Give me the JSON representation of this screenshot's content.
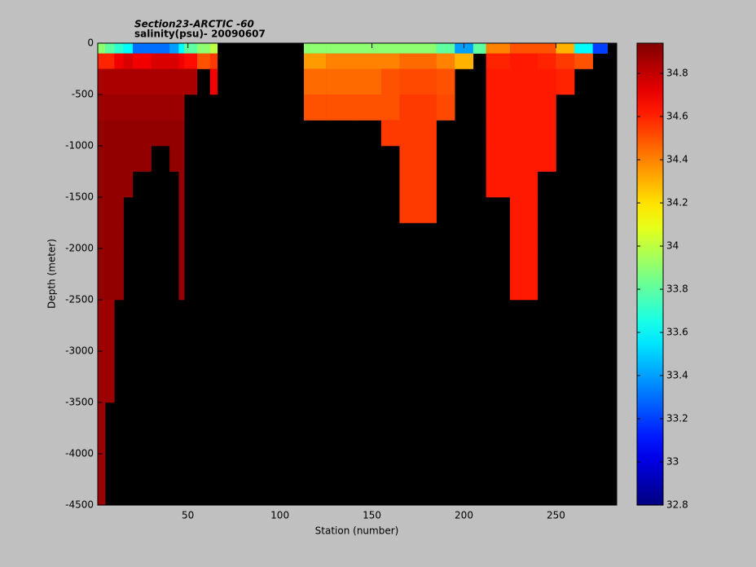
{
  "chart_data": {
    "type": "heatmap",
    "title": "Section23-ARCTIC  -60",
    "subtitle": "salinity(psu)- 20090607",
    "x_label": "Station (number)",
    "y_label": "Depth (meter)",
    "xlim": [
      1,
      283
    ],
    "xticks": [
      50,
      100,
      150,
      200,
      250
    ],
    "ylim": [
      -4500,
      0
    ],
    "yticks": [
      0,
      -500,
      -1000,
      -1500,
      -2000,
      -2500,
      -3000,
      -3500,
      -4000,
      -4500
    ],
    "colormap": "jet",
    "missing_color": "#000000",
    "clim": [
      32.8,
      34.94
    ],
    "cticks": [
      32.8,
      33,
      33.2,
      33.4,
      33.6,
      33.8,
      34,
      34.2,
      34.4,
      34.6,
      34.8
    ],
    "x_edges": [
      1,
      5,
      10,
      15,
      20,
      30,
      40,
      45,
      48,
      55,
      62,
      66,
      113,
      125,
      140,
      155,
      165,
      185,
      195,
      205,
      212,
      225,
      240,
      250,
      260,
      270,
      278,
      283
    ],
    "y_edges": [
      0,
      -100,
      -250,
      -500,
      -750,
      -1000,
      -1250,
      -1500,
      -1750,
      -2000,
      -2500,
      -3000,
      -3500,
      -4000,
      -4500
    ],
    "values": [
      [
        33.9,
        34.6,
        34.85,
        34.88,
        34.9,
        34.9,
        34.9,
        34.9,
        34.9,
        34.9,
        34.88,
        34.88,
        34.88,
        34.88
      ],
      [
        33.8,
        34.6,
        34.85,
        34.88,
        34.9,
        34.9,
        34.9,
        34.9,
        34.9,
        34.9,
        34.88,
        34.88,
        null,
        null
      ],
      [
        33.7,
        34.7,
        34.85,
        34.88,
        34.9,
        34.9,
        34.9,
        34.9,
        34.9,
        34.9,
        null,
        null,
        null,
        null
      ],
      [
        33.6,
        34.75,
        34.85,
        34.88,
        34.9,
        34.9,
        34.9,
        null,
        null,
        null,
        null,
        null,
        null,
        null
      ],
      [
        33.3,
        34.7,
        34.85,
        34.88,
        34.9,
        34.9,
        null,
        null,
        null,
        null,
        null,
        null,
        null,
        null
      ],
      [
        33.3,
        34.75,
        34.85,
        34.88,
        34.9,
        null,
        null,
        null,
        null,
        null,
        null,
        null,
        null,
        null
      ],
      [
        33.4,
        34.75,
        34.85,
        34.88,
        34.9,
        34.9,
        null,
        null,
        null,
        null,
        null,
        null,
        null,
        null
      ],
      [
        33.6,
        34.7,
        34.85,
        34.88,
        34.9,
        34.9,
        34.9,
        34.9,
        34.9,
        34.9,
        null,
        null,
        null,
        null
      ],
      [
        33.8,
        34.65,
        34.85,
        null,
        null,
        null,
        null,
        null,
        null,
        null,
        null,
        null,
        null,
        null
      ],
      [
        33.9,
        34.5,
        null,
        null,
        null,
        null,
        null,
        null,
        null,
        null,
        null,
        null,
        null,
        null
      ],
      [
        34.0,
        34.55,
        34.7,
        null,
        null,
        null,
        null,
        null,
        null,
        null,
        null,
        null,
        null,
        null
      ],
      [
        null,
        null,
        null,
        null,
        null,
        null,
        null,
        null,
        null,
        null,
        null,
        null,
        null,
        null
      ],
      [
        33.9,
        34.35,
        34.45,
        34.5,
        null,
        null,
        null,
        null,
        null,
        null,
        null,
        null,
        null,
        null
      ],
      [
        33.9,
        34.4,
        34.45,
        34.5,
        null,
        null,
        null,
        null,
        null,
        null,
        null,
        null,
        null,
        null
      ],
      [
        33.9,
        34.4,
        34.45,
        34.5,
        null,
        null,
        null,
        null,
        null,
        null,
        null,
        null,
        null,
        null
      ],
      [
        33.9,
        34.4,
        34.5,
        34.5,
        34.55,
        null,
        null,
        null,
        null,
        null,
        null,
        null,
        null,
        null
      ],
      [
        33.9,
        34.45,
        34.52,
        34.55,
        34.55,
        34.55,
        34.55,
        34.55,
        null,
        null,
        null,
        null,
        null,
        null
      ],
      [
        33.8,
        34.4,
        34.5,
        34.52,
        null,
        null,
        null,
        null,
        null,
        null,
        null,
        null,
        null,
        null
      ],
      [
        33.4,
        34.3,
        null,
        null,
        null,
        null,
        null,
        null,
        null,
        null,
        null,
        null,
        null,
        null
      ],
      [
        33.8,
        null,
        null,
        null,
        null,
        null,
        null,
        null,
        null,
        null,
        null,
        null,
        null,
        null
      ],
      [
        34.4,
        34.6,
        34.62,
        34.62,
        34.62,
        34.62,
        34.62,
        null,
        null,
        null,
        null,
        null,
        null,
        null
      ],
      [
        34.5,
        34.62,
        34.62,
        34.62,
        34.62,
        34.62,
        34.62,
        34.62,
        34.62,
        34.62,
        null,
        null,
        null,
        null
      ],
      [
        34.5,
        34.6,
        34.62,
        34.62,
        34.62,
        34.62,
        null,
        null,
        null,
        null,
        null,
        null,
        null,
        null
      ],
      [
        34.3,
        34.55,
        34.6,
        null,
        null,
        null,
        null,
        null,
        null,
        null,
        null,
        null,
        null,
        null
      ],
      [
        33.6,
        34.5,
        null,
        null,
        null,
        null,
        null,
        null,
        null,
        null,
        null,
        null,
        null,
        null
      ],
      [
        33.2,
        null,
        null,
        null,
        null,
        null,
        null,
        null,
        null,
        null,
        null,
        null,
        null,
        null
      ],
      [
        null,
        null,
        null,
        null,
        null,
        null,
        null,
        null,
        null,
        null,
        null,
        null,
        null,
        null
      ]
    ]
  }
}
